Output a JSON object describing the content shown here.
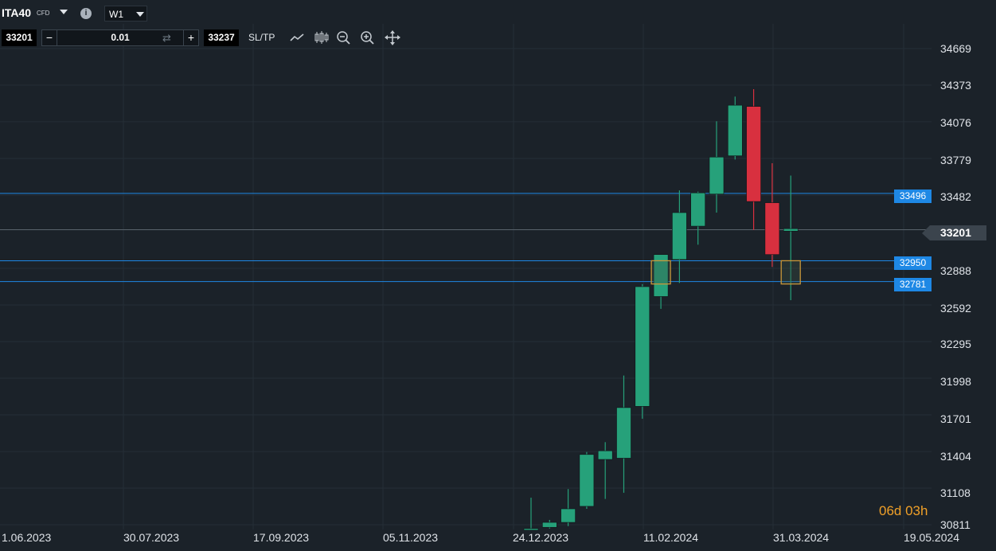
{
  "header": {
    "symbol": "ITA40",
    "instrument_type": "CFD",
    "info_icon": "info-icon",
    "timeframe": "W1"
  },
  "trade_bar": {
    "sell_price": "33201",
    "quantity": "0.01",
    "buy_price": "33237",
    "minus_label": "−",
    "plus_label": "+",
    "sltp_label": "SL/TP",
    "tools": [
      "line-chart-icon",
      "candlestick-icon",
      "zoom-out-icon",
      "zoom-in-icon",
      "move-icon"
    ]
  },
  "colors": {
    "background": "#1b2229",
    "bull": "#26a17a",
    "bear": "#d8303f",
    "horizontal_line": "#1e88e5",
    "current_price_line": "#5a636c",
    "order_box": "#c9973a",
    "countdown": "#f0a028"
  },
  "countdown": "06d 03h",
  "current_price_tag": "33201",
  "horizontal_lines": [
    {
      "label": "33496",
      "price": 33496
    },
    {
      "label": "32950",
      "price": 32950
    },
    {
      "label": "32781",
      "price": 32781
    }
  ],
  "chart_data": {
    "type": "candlestick",
    "timeframe": "W1",
    "y_ticks": [
      "34669",
      "34373",
      "34076",
      "33779",
      "33482",
      "33201",
      "32888",
      "32592",
      "32295",
      "31998",
      "31701",
      "31404",
      "31108",
      "30811"
    ],
    "x_ticks": [
      "1.06.2023",
      "30.07.2023",
      "17.09.2023",
      "05.11.2023",
      "24.12.2023",
      "11.02.2024",
      "31.03.2024",
      "19.05.2024"
    ],
    "ylim": [
      30811,
      34669
    ],
    "current_price": 33201,
    "candles": [
      {
        "open": 30780,
        "high": 31030,
        "low": 30780,
        "close": 30780
      },
      {
        "open": 30790,
        "high": 30850,
        "low": 30780,
        "close": 30830
      },
      {
        "open": 30830,
        "high": 31100,
        "low": 30800,
        "close": 30940
      },
      {
        "open": 30960,
        "high": 31400,
        "low": 30940,
        "close": 31380
      },
      {
        "open": 31340,
        "high": 31480,
        "low": 31020,
        "close": 31410
      },
      {
        "open": 31350,
        "high": 32020,
        "low": 31070,
        "close": 31760
      },
      {
        "open": 31770,
        "high": 32760,
        "low": 31670,
        "close": 32740
      },
      {
        "open": 32660,
        "high": 33000,
        "low": 32560,
        "close": 33000
      },
      {
        "open": 32960,
        "high": 33520,
        "low": 32770,
        "close": 33340
      },
      {
        "open": 33230,
        "high": 33510,
        "low": 33080,
        "close": 33500
      },
      {
        "open": 33490,
        "high": 34080,
        "low": 33340,
        "close": 33790
      },
      {
        "open": 33800,
        "high": 34280,
        "low": 33770,
        "close": 34210
      },
      {
        "open": 34200,
        "high": 34340,
        "low": 33200,
        "close": 33430
      },
      {
        "open": 33420,
        "high": 33740,
        "low": 32900,
        "close": 33000
      },
      {
        "open": 33190,
        "high": 33640,
        "low": 32630,
        "close": 33210
      }
    ]
  }
}
